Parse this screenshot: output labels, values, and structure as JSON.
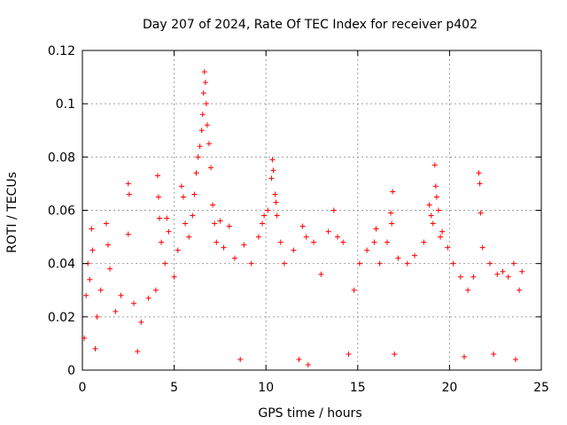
{
  "chart_data": {
    "type": "scatter",
    "title": "Day 207 of 2024, Rate Of TEC Index for receiver p402",
    "xlabel": "GPS time / hours",
    "ylabel": "ROTI / TECUs",
    "xlim": [
      0,
      25
    ],
    "ylim": [
      0,
      0.12
    ],
    "x_ticks": [
      0,
      5,
      10,
      15,
      20,
      25
    ],
    "x_tick_labels": [
      "0",
      "5",
      "10",
      "15",
      "20",
      "25"
    ],
    "y_ticks": [
      0,
      0.02,
      0.04,
      0.06,
      0.08,
      0.1,
      0.12
    ],
    "y_tick_labels": [
      "0",
      "0.02",
      "0.04",
      "0.06",
      "0.08",
      "0.1",
      "0.12"
    ],
    "grid": true,
    "marker": "plus",
    "series": [
      {
        "name": "ROTI",
        "color": "#ff0000",
        "points": [
          [
            0.1,
            0.012
          ],
          [
            0.2,
            0.028
          ],
          [
            0.3,
            0.04
          ],
          [
            0.4,
            0.034
          ],
          [
            0.5,
            0.053
          ],
          [
            0.55,
            0.045
          ],
          [
            0.8,
            0.02
          ],
          [
            1.0,
            0.03
          ],
          [
            1.3,
            0.055
          ],
          [
            1.4,
            0.047
          ],
          [
            1.5,
            0.038
          ],
          [
            1.8,
            0.022
          ],
          [
            2.1,
            0.028
          ],
          [
            2.5,
            0.07
          ],
          [
            2.55,
            0.066
          ],
          [
            2.5,
            0.051
          ],
          [
            2.8,
            0.025
          ],
          [
            3.2,
            0.018
          ],
          [
            3.6,
            0.027
          ],
          [
            4.0,
            0.03
          ],
          [
            4.1,
            0.073
          ],
          [
            4.15,
            0.065
          ],
          [
            4.2,
            0.057
          ],
          [
            4.3,
            0.048
          ],
          [
            4.5,
            0.04
          ],
          [
            4.6,
            0.057
          ],
          [
            4.7,
            0.052
          ],
          [
            5.0,
            0.035
          ],
          [
            5.2,
            0.045
          ],
          [
            5.4,
            0.069
          ],
          [
            5.5,
            0.065
          ],
          [
            5.6,
            0.055
          ],
          [
            5.8,
            0.05
          ],
          [
            6.0,
            0.058
          ],
          [
            6.1,
            0.066
          ],
          [
            6.2,
            0.074
          ],
          [
            6.3,
            0.08
          ],
          [
            6.4,
            0.084
          ],
          [
            6.5,
            0.09
          ],
          [
            6.55,
            0.096
          ],
          [
            6.6,
            0.104
          ],
          [
            6.65,
            0.112
          ],
          [
            6.7,
            0.108
          ],
          [
            6.75,
            0.1
          ],
          [
            6.8,
            0.092
          ],
          [
            6.9,
            0.085
          ],
          [
            7.0,
            0.076
          ],
          [
            7.1,
            0.062
          ],
          [
            7.2,
            0.055
          ],
          [
            7.3,
            0.048
          ],
          [
            7.5,
            0.056
          ],
          [
            7.7,
            0.046
          ],
          [
            8.0,
            0.054
          ],
          [
            8.3,
            0.042
          ],
          [
            8.8,
            0.047
          ],
          [
            9.2,
            0.04
          ],
          [
            9.6,
            0.05
          ],
          [
            9.8,
            0.055
          ],
          [
            9.9,
            0.058
          ],
          [
            10.1,
            0.06
          ],
          [
            10.3,
            0.072
          ],
          [
            10.35,
            0.079
          ],
          [
            10.4,
            0.075
          ],
          [
            10.5,
            0.066
          ],
          [
            10.55,
            0.063
          ],
          [
            10.6,
            0.058
          ],
          [
            10.8,
            0.048
          ],
          [
            11.0,
            0.04
          ],
          [
            11.5,
            0.045
          ],
          [
            12.0,
            0.054
          ],
          [
            12.2,
            0.05
          ],
          [
            12.6,
            0.048
          ],
          [
            13.0,
            0.036
          ],
          [
            13.4,
            0.052
          ],
          [
            13.7,
            0.06
          ],
          [
            13.9,
            0.05
          ],
          [
            14.2,
            0.048
          ],
          [
            14.8,
            0.03
          ],
          [
            15.1,
            0.04
          ],
          [
            15.5,
            0.045
          ],
          [
            15.9,
            0.048
          ],
          [
            16.0,
            0.053
          ],
          [
            16.2,
            0.04
          ],
          [
            16.6,
            0.048
          ],
          [
            16.8,
            0.059
          ],
          [
            16.85,
            0.055
          ],
          [
            16.9,
            0.067
          ],
          [
            17.2,
            0.042
          ],
          [
            17.7,
            0.04
          ],
          [
            18.1,
            0.043
          ],
          [
            18.6,
            0.048
          ],
          [
            18.9,
            0.062
          ],
          [
            19.0,
            0.058
          ],
          [
            19.1,
            0.055
          ],
          [
            19.2,
            0.077
          ],
          [
            19.25,
            0.069
          ],
          [
            19.3,
            0.065
          ],
          [
            19.4,
            0.06
          ],
          [
            19.5,
            0.05
          ],
          [
            19.6,
            0.052
          ],
          [
            19.9,
            0.046
          ],
          [
            20.2,
            0.04
          ],
          [
            20.6,
            0.035
          ],
          [
            21.0,
            0.03
          ],
          [
            21.3,
            0.035
          ],
          [
            21.6,
            0.074
          ],
          [
            21.65,
            0.07
          ],
          [
            21.7,
            0.059
          ],
          [
            21.8,
            0.046
          ],
          [
            22.2,
            0.04
          ],
          [
            22.6,
            0.036
          ],
          [
            22.9,
            0.037
          ],
          [
            23.2,
            0.035
          ],
          [
            23.5,
            0.04
          ],
          [
            23.8,
            0.03
          ],
          [
            23.95,
            0.037
          ],
          [
            0.7,
            0.008
          ],
          [
            3.0,
            0.007
          ],
          [
            8.6,
            0.004
          ],
          [
            11.8,
            0.004
          ],
          [
            12.3,
            0.002
          ],
          [
            14.5,
            0.006
          ],
          [
            17.0,
            0.006
          ],
          [
            20.8,
            0.005
          ],
          [
            22.4,
            0.006
          ],
          [
            23.6,
            0.004
          ]
        ]
      }
    ]
  }
}
